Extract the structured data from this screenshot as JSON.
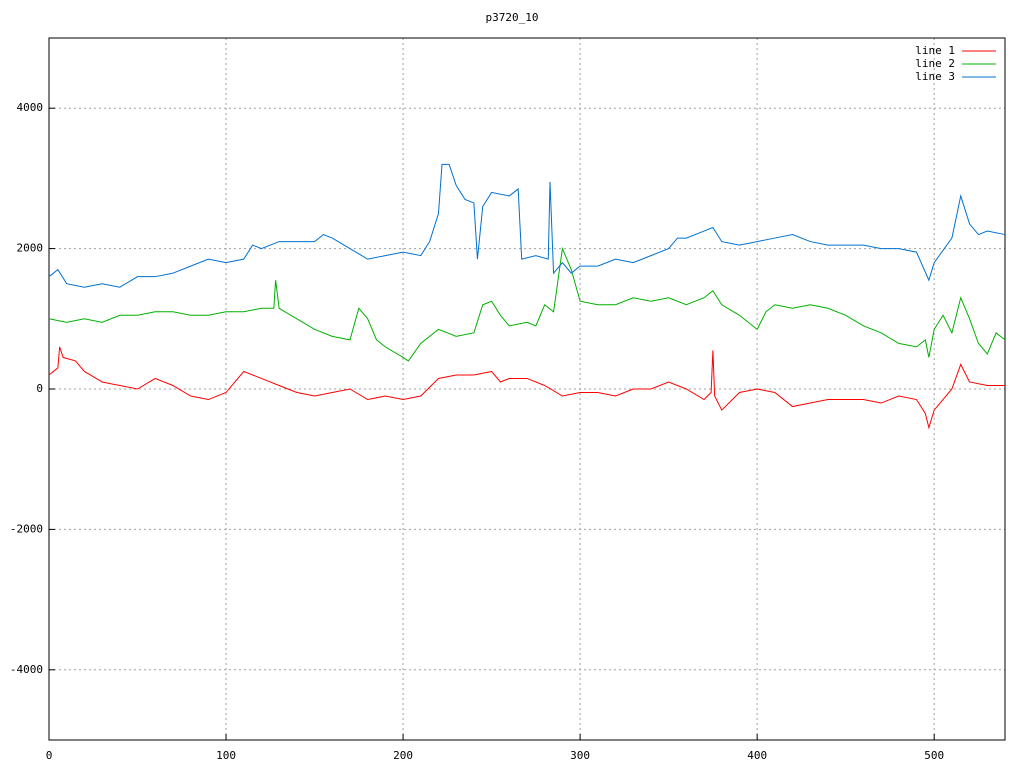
{
  "chart_data": {
    "type": "line",
    "title": "p3720_10",
    "xlim": [
      0,
      540
    ],
    "ylim": [
      -5000,
      5000
    ],
    "xticks": [
      0,
      100,
      200,
      300,
      400,
      500
    ],
    "yticks": [
      -4000,
      -2000,
      0,
      2000,
      4000
    ],
    "grid": true,
    "legend": "top-right",
    "series": [
      {
        "name": "line 1",
        "color": "#ff0000",
        "x": [
          0,
          5,
          6,
          8,
          15,
          20,
          30,
          40,
          50,
          60,
          70,
          80,
          90,
          100,
          105,
          110,
          120,
          130,
          140,
          150,
          160,
          170,
          180,
          190,
          200,
          210,
          220,
          230,
          240,
          250,
          255,
          260,
          270,
          280,
          290,
          300,
          310,
          320,
          330,
          340,
          350,
          360,
          370,
          374,
          375,
          376,
          380,
          390,
          400,
          410,
          420,
          430,
          440,
          450,
          460,
          470,
          480,
          490,
          495,
          497,
          500,
          510,
          515,
          520,
          530,
          540
        ],
        "values": [
          200,
          300,
          600,
          450,
          400,
          250,
          100,
          50,
          0,
          150,
          50,
          -100,
          -150,
          -50,
          100,
          250,
          150,
          50,
          -50,
          -100,
          -50,
          0,
          -150,
          -100,
          -150,
          -100,
          150,
          200,
          200,
          250,
          100,
          150,
          150,
          50,
          -100,
          -50,
          -50,
          -100,
          0,
          0,
          100,
          0,
          -150,
          -50,
          550,
          -100,
          -300,
          -50,
          0,
          -50,
          -250,
          -200,
          -150,
          -150,
          -150,
          -200,
          -100,
          -150,
          -350,
          -550,
          -300,
          0,
          350,
          100,
          50,
          50
        ]
      },
      {
        "name": "line 2",
        "color": "#00b000",
        "x": [
          0,
          10,
          20,
          30,
          40,
          50,
          60,
          70,
          80,
          90,
          100,
          110,
          120,
          127,
          128,
          130,
          140,
          150,
          160,
          170,
          175,
          180,
          185,
          190,
          200,
          203,
          210,
          220,
          230,
          240,
          245,
          250,
          255,
          260,
          270,
          275,
          280,
          285,
          290,
          295,
          300,
          310,
          320,
          330,
          340,
          350,
          360,
          370,
          375,
          380,
          390,
          400,
          405,
          410,
          420,
          430,
          440,
          450,
          460,
          470,
          480,
          490,
          495,
          497,
          500,
          505,
          510,
          515,
          520,
          525,
          530,
          535,
          540
        ],
        "values": [
          1000,
          950,
          1000,
          950,
          1050,
          1050,
          1100,
          1100,
          1050,
          1050,
          1100,
          1100,
          1150,
          1150,
          1550,
          1150,
          1000,
          850,
          750,
          700,
          1150,
          1000,
          700,
          600,
          450,
          400,
          650,
          850,
          750,
          800,
          1200,
          1250,
          1050,
          900,
          950,
          900,
          1200,
          1100,
          2000,
          1700,
          1250,
          1200,
          1200,
          1300,
          1250,
          1300,
          1200,
          1300,
          1400,
          1200,
          1050,
          850,
          1100,
          1200,
          1150,
          1200,
          1150,
          1050,
          900,
          800,
          650,
          600,
          700,
          450,
          850,
          1050,
          800,
          1300,
          1000,
          650,
          500,
          800,
          700
        ]
      },
      {
        "name": "line 3",
        "color": "#0070d0",
        "x": [
          0,
          5,
          10,
          20,
          30,
          40,
          50,
          60,
          70,
          80,
          90,
          100,
          110,
          115,
          120,
          130,
          140,
          150,
          155,
          160,
          170,
          180,
          190,
          200,
          210,
          215,
          220,
          222,
          226,
          230,
          235,
          240,
          242,
          245,
          250,
          260,
          265,
          267,
          275,
          282,
          283,
          285,
          290,
          295,
          300,
          310,
          320,
          330,
          340,
          350,
          355,
          360,
          370,
          375,
          380,
          390,
          400,
          410,
          420,
          430,
          440,
          450,
          460,
          470,
          480,
          490,
          497,
          500,
          510,
          515,
          520,
          525,
          530,
          540
        ],
        "values": [
          1600,
          1700,
          1500,
          1450,
          1500,
          1450,
          1600,
          1600,
          1650,
          1750,
          1850,
          1800,
          1850,
          2050,
          2000,
          2100,
          2100,
          2100,
          2200,
          2150,
          2000,
          1850,
          1900,
          1950,
          1900,
          2100,
          2500,
          3200,
          3200,
          2900,
          2700,
          2650,
          1850,
          2600,
          2800,
          2750,
          2850,
          1850,
          1900,
          1850,
          2950,
          1650,
          1800,
          1650,
          1750,
          1750,
          1850,
          1800,
          1900,
          2000,
          2150,
          2150,
          2250,
          2300,
          2100,
          2050,
          2100,
          2150,
          2200,
          2100,
          2050,
          2050,
          2050,
          2000,
          2000,
          1950,
          1550,
          1800,
          2150,
          2750,
          2350,
          2200,
          2250,
          2200
        ]
      }
    ]
  }
}
